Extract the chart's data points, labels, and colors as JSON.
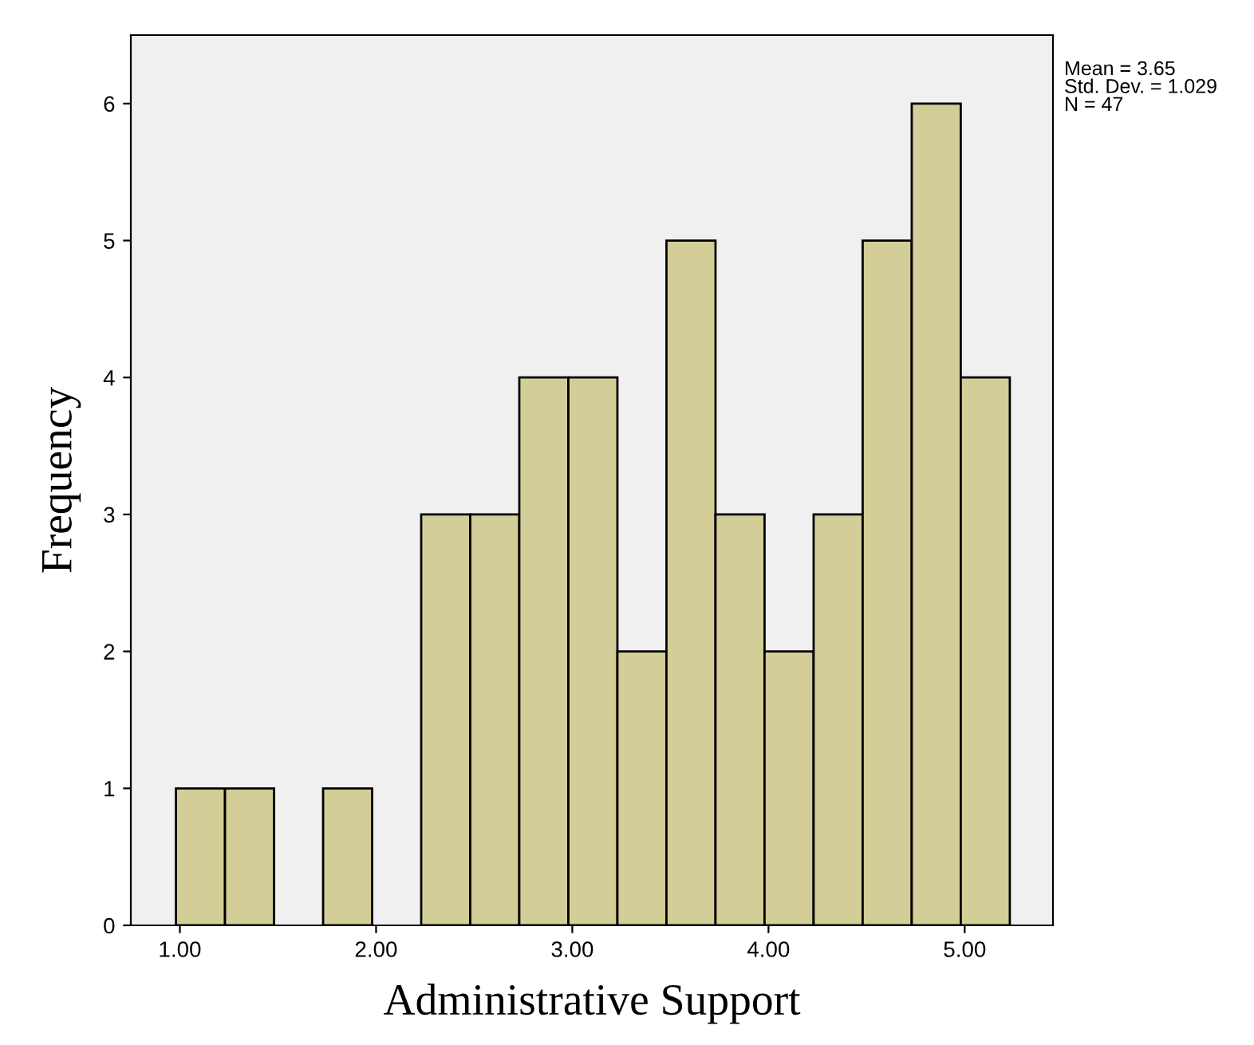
{
  "chart_data": {
    "type": "histogram",
    "xlabel": "Administrative Support",
    "ylabel": "Frequency",
    "bins": [
      0.98,
      1.23,
      1.48,
      1.73,
      1.98,
      2.23,
      2.48,
      2.73,
      2.98,
      3.23,
      3.48,
      3.73,
      3.98,
      4.23,
      4.48,
      4.73,
      4.98,
      5.23
    ],
    "values": [
      1,
      1,
      0,
      1,
      0,
      3,
      3,
      4,
      4,
      2,
      5,
      3,
      2,
      3,
      5,
      6,
      4
    ],
    "color": "#d3ce97",
    "xlim": [
      0.75,
      5.45
    ],
    "ylim": [
      0,
      6.5
    ],
    "xticks": [
      {
        "value": 1,
        "label": "1.00"
      },
      {
        "value": 2,
        "label": "2.00"
      },
      {
        "value": 3,
        "label": "3.00"
      },
      {
        "value": 4,
        "label": "4.00"
      },
      {
        "value": 5,
        "label": "5.00"
      }
    ],
    "yticks": [
      0,
      1,
      2,
      3,
      4,
      5,
      6
    ],
    "annotations": [
      "Mean = 3.65\nStd. Dev. = 1.029\nN = 47"
    ],
    "grid": false,
    "legend": false
  }
}
